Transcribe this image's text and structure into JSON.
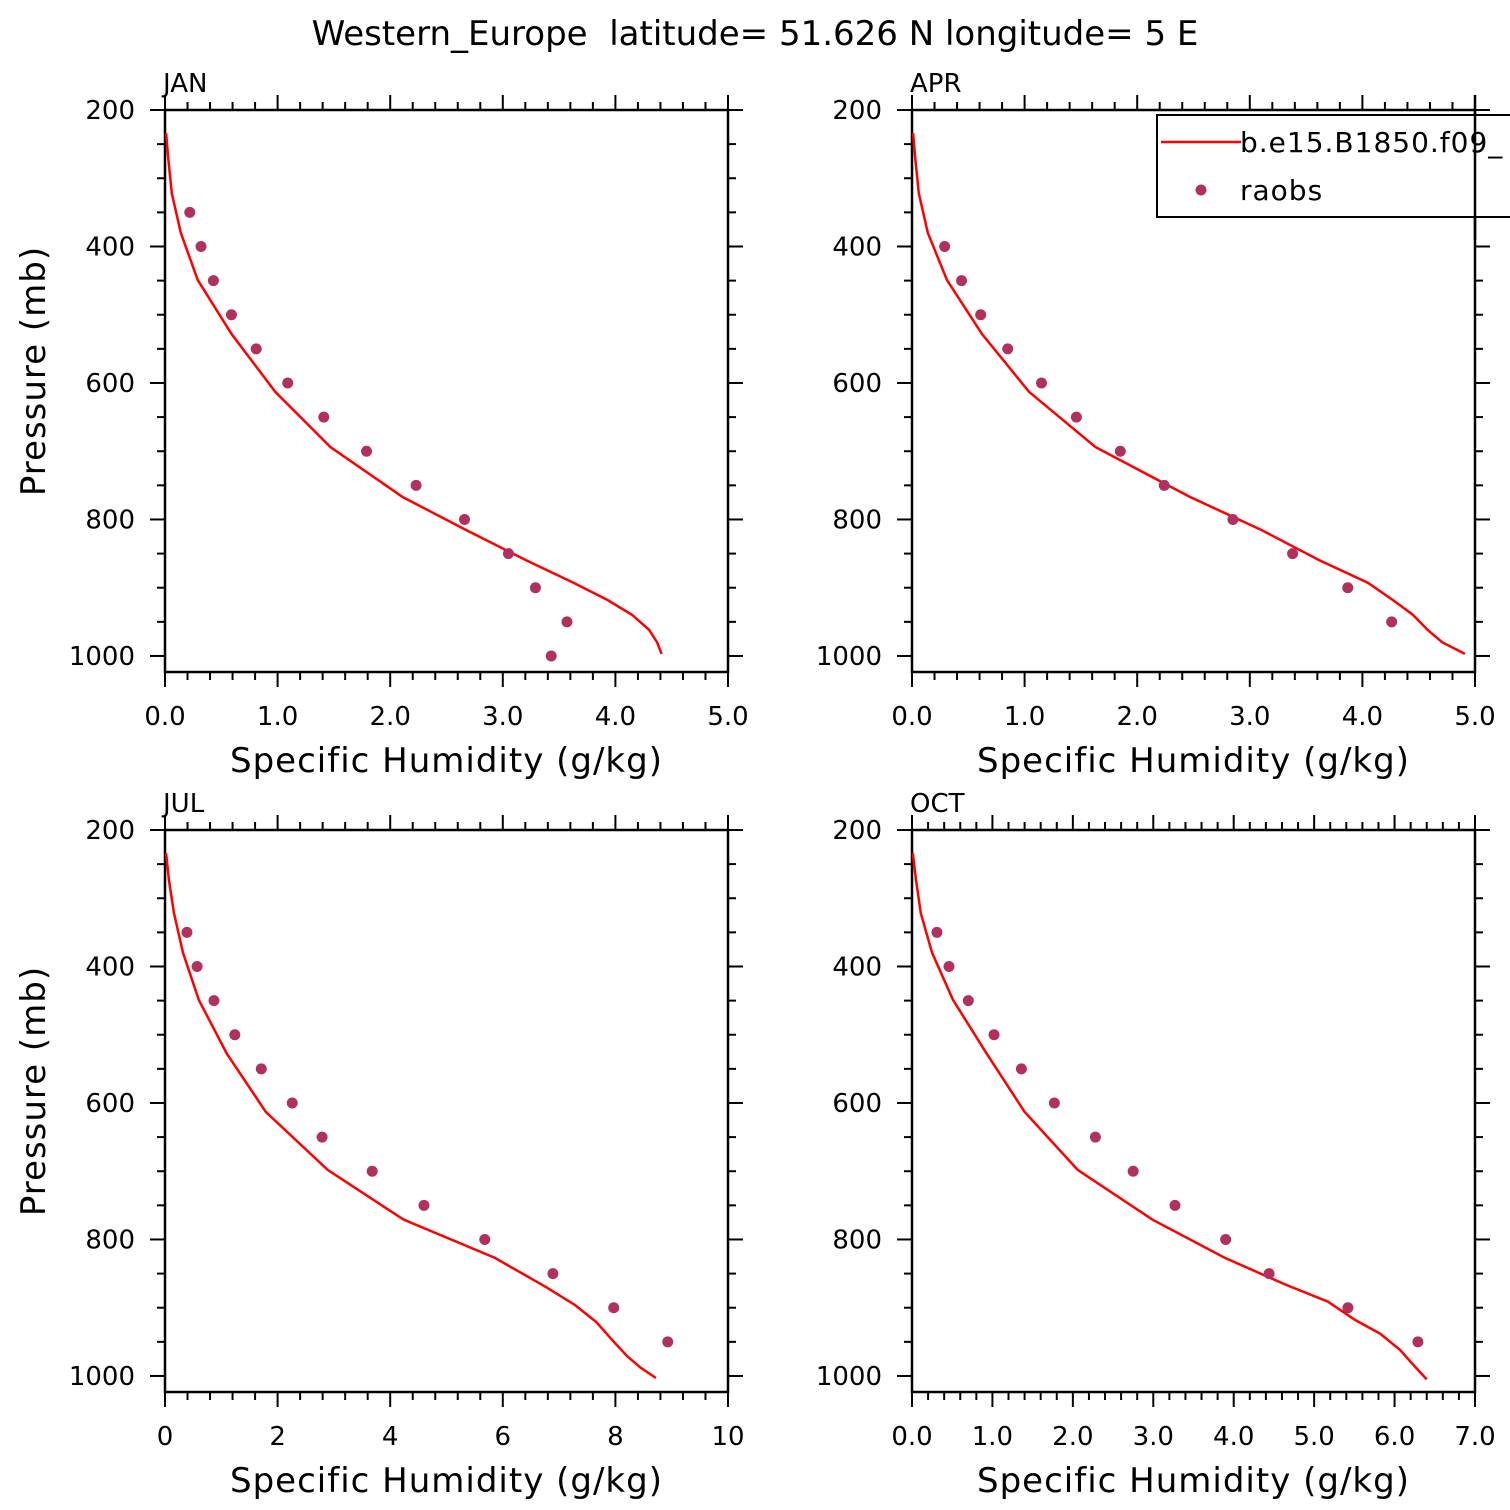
{
  "title": "Western_Europe  latitude= 51.626 N longitude= 5 E",
  "legend": {
    "placement": "top-right",
    "entries": [
      {
        "label": "b.e15.B1850.f09_",
        "type": "line",
        "color": "#ff0000"
      },
      {
        "label": "raobs",
        "type": "marker",
        "color": "#b03060"
      }
    ]
  },
  "chart_data": [
    {
      "type": "line",
      "title": "JAN",
      "xlabel": "Specific Humidity (g/kg)",
      "ylabel": "Pressure (mb)",
      "xlim": [
        0,
        5
      ],
      "ylim": [
        1023.5,
        200
      ],
      "grid": false,
      "xticks": [
        0,
        1,
        2,
        3,
        4,
        5
      ],
      "xtick_labels": [
        "0.0",
        "1.0",
        "2.0",
        "3.0",
        "4.0",
        "5.0"
      ],
      "xminor": 0.2,
      "yticks": [
        200,
        400,
        600,
        800,
        1000
      ],
      "ytick_labels": [
        "200",
        "400",
        "600",
        "800",
        "1000"
      ],
      "yminor": 50,
      "series": [
        {
          "name": "b.e15.B1850.f09_",
          "kind": "line",
          "x": [
            0.01,
            0.03,
            0.06,
            0.14,
            0.29,
            0.59,
            0.98,
            1.47,
            2.11,
            2.68,
            3.21,
            3.63,
            3.93,
            4.15,
            4.3,
            4.37,
            4.41
          ],
          "y": [
            234,
            273,
            322,
            380,
            449,
            528,
            613,
            694,
            767,
            816,
            860,
            893,
            918,
            940,
            962,
            980,
            997
          ]
        },
        {
          "name": "raobs",
          "kind": "scatter",
          "x": [
            0.22,
            0.32,
            0.43,
            0.59,
            0.81,
            1.09,
            1.41,
            1.79,
            2.23,
            2.66,
            3.05,
            3.29,
            3.57,
            3.43
          ],
          "y": [
            350,
            400,
            450,
            500,
            550,
            600,
            650,
            700,
            750,
            800,
            850,
            900,
            950,
            1000
          ]
        }
      ]
    },
    {
      "type": "line",
      "title": "APR",
      "xlabel": "Specific Humidity (g/kg)",
      "ylabel": "",
      "xlim": [
        0,
        5
      ],
      "ylim": [
        1023.5,
        200
      ],
      "grid": false,
      "xticks": [
        0,
        1,
        2,
        3,
        4,
        5
      ],
      "xtick_labels": [
        "0.0",
        "1.0",
        "2.0",
        "3.0",
        "4.0",
        "5.0"
      ],
      "xminor": 0.2,
      "yticks": [
        200,
        400,
        600,
        800,
        1000
      ],
      "ytick_labels": [
        "200",
        "400",
        "600",
        "800",
        "1000"
      ],
      "yminor": 50,
      "series": [
        {
          "name": "b.e15.B1850.f09_",
          "kind": "line",
          "x": [
            0.01,
            0.03,
            0.06,
            0.14,
            0.31,
            0.62,
            1.04,
            1.63,
            2.47,
            3.11,
            3.62,
            4.05,
            4.27,
            4.45,
            4.58,
            4.71,
            4.91
          ],
          "y": [
            234,
            273,
            322,
            380,
            449,
            528,
            613,
            694,
            767,
            816,
            860,
            893,
            918,
            940,
            962,
            980,
            997
          ]
        },
        {
          "name": "raobs",
          "kind": "scatter",
          "x": [
            0.29,
            0.44,
            0.61,
            0.85,
            1.15,
            1.46,
            1.85,
            2.24,
            2.85,
            3.38,
            3.87,
            4.26
          ],
          "y": [
            400,
            450,
            500,
            550,
            600,
            650,
            700,
            750,
            800,
            850,
            900,
            950
          ]
        }
      ]
    },
    {
      "type": "line",
      "title": "JUL",
      "xlabel": "Specific Humidity (g/kg)",
      "ylabel": "Pressure (mb)",
      "xlim": [
        0,
        10
      ],
      "ylim": [
        1023.5,
        200
      ],
      "grid": false,
      "xticks": [
        0,
        2,
        4,
        6,
        8,
        10
      ],
      "xtick_labels": [
        "0",
        "2",
        "4",
        "6",
        "8",
        "10"
      ],
      "xminor": 0.4,
      "yticks": [
        200,
        400,
        600,
        800,
        1000
      ],
      "ytick_labels": [
        "200",
        "400",
        "600",
        "800",
        "1000"
      ],
      "yminor": 50,
      "series": [
        {
          "name": "b.e15.B1850.f09_",
          "kind": "line",
          "x": [
            0.02,
            0.07,
            0.16,
            0.32,
            0.6,
            1.1,
            1.79,
            2.89,
            4.24,
            5.86,
            6.77,
            7.28,
            7.66,
            7.94,
            8.21,
            8.45,
            8.72
          ],
          "y": [
            234,
            273,
            322,
            380,
            449,
            528,
            613,
            698,
            771,
            827,
            870,
            896,
            921,
            947,
            971,
            988,
            1003
          ]
        },
        {
          "name": "raobs",
          "kind": "scatter",
          "x": [
            0.39,
            0.57,
            0.87,
            1.24,
            1.71,
            2.26,
            2.79,
            3.68,
            4.6,
            5.68,
            6.89,
            7.97,
            8.93
          ],
          "y": [
            350,
            400,
            450,
            500,
            550,
            600,
            650,
            700,
            750,
            800,
            850,
            900,
            950
          ]
        }
      ]
    },
    {
      "type": "line",
      "title": "OCT",
      "xlabel": "Specific Humidity (g/kg)",
      "ylabel": "",
      "xlim": [
        0,
        7
      ],
      "ylim": [
        1023.5,
        200
      ],
      "grid": false,
      "xticks": [
        0,
        1,
        2,
        3,
        4,
        5,
        6,
        7
      ],
      "xtick_labels": [
        "0.0",
        "1.0",
        "2.0",
        "3.0",
        "4.0",
        "5.0",
        "6.0",
        "7.0"
      ],
      "xminor": 0.2,
      "yticks": [
        200,
        400,
        600,
        800,
        1000
      ],
      "ytick_labels": [
        "200",
        "400",
        "600",
        "800",
        "1000"
      ],
      "yminor": 50,
      "series": [
        {
          "name": "b.e15.B1850.f09_",
          "kind": "line",
          "x": [
            0.01,
            0.05,
            0.11,
            0.25,
            0.51,
            0.93,
            1.4,
            2.06,
            2.99,
            3.89,
            4.64,
            5.17,
            5.51,
            5.82,
            6.07,
            6.22,
            6.4
          ],
          "y": [
            234,
            273,
            322,
            380,
            449,
            528,
            613,
            698,
            771,
            827,
            866,
            891,
            918,
            938,
            962,
            982,
            1005
          ]
        },
        {
          "name": "raobs",
          "kind": "scatter",
          "x": [
            0.31,
            0.46,
            0.7,
            1.02,
            1.36,
            1.77,
            2.28,
            2.75,
            3.27,
            3.9,
            4.44,
            5.42,
            6.29
          ],
          "y": [
            350,
            400,
            450,
            500,
            550,
            600,
            650,
            700,
            750,
            800,
            850,
            900,
            950
          ]
        }
      ]
    }
  ]
}
